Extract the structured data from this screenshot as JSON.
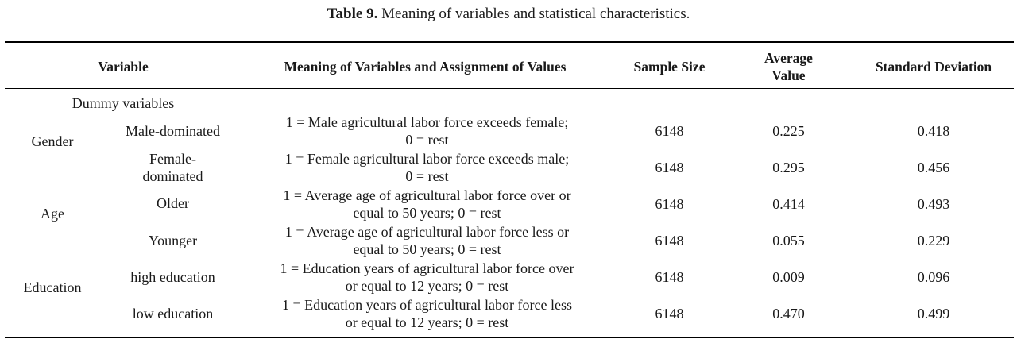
{
  "caption": {
    "label": "Table 9.",
    "text": "Meaning of variables and statistical characteristics."
  },
  "headers": {
    "variable": "Variable",
    "meaning": "Meaning of Variables and Assignment of Values",
    "sample_size": "Sample Size",
    "average_l1": "Average",
    "average_l2": "Value",
    "std": "Standard Deviation"
  },
  "section_label": "Dummy variables",
  "groups": [
    "Gender",
    "Age",
    "Education"
  ],
  "rows": [
    {
      "sub": [
        "Male-dominated"
      ],
      "meaning": [
        "1 = Male agricultural labor force exceeds female;",
        "0 = rest"
      ],
      "n": "6148",
      "avg": "0.225",
      "sd": "0.418"
    },
    {
      "sub": [
        "Female-",
        "dominated"
      ],
      "meaning": [
        "1 = Female agricultural labor force exceeds male;",
        "0 = rest"
      ],
      "n": "6148",
      "avg": "0.295",
      "sd": "0.456"
    },
    {
      "sub": [
        "Older"
      ],
      "meaning": [
        "1 = Average age of agricultural labor force over or",
        "equal to 50 years; 0 = rest"
      ],
      "n": "6148",
      "avg": "0.414",
      "sd": "0.493"
    },
    {
      "sub": [
        "Younger"
      ],
      "meaning": [
        "1 = Average age of agricultural labor force less or",
        "equal to 50 years; 0 = rest"
      ],
      "n": "6148",
      "avg": "0.055",
      "sd": "0.229"
    },
    {
      "sub": [
        "high education"
      ],
      "meaning": [
        "1 = Education years of agricultural labor force over",
        "or equal to 12 years; 0 = rest"
      ],
      "n": "6148",
      "avg": "0.009",
      "sd": "0.096"
    },
    {
      "sub": [
        "low education"
      ],
      "meaning": [
        "1 = Education years of agricultural labor force less",
        "or equal to 12 years; 0 = rest"
      ],
      "n": "6148",
      "avg": "0.470",
      "sd": "0.499"
    }
  ]
}
